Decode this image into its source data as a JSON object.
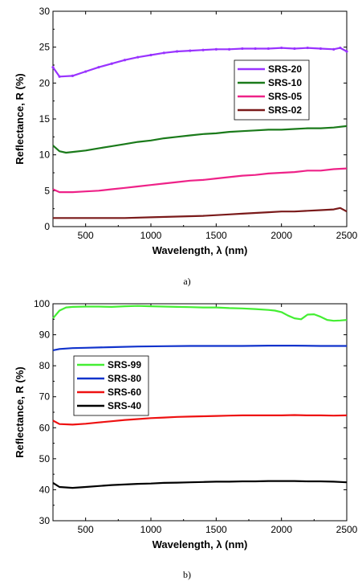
{
  "chart_data": [
    {
      "type": "line",
      "caption": "a)",
      "xlabel": "Wavelength, λ (nm)",
      "ylabel": "Reflectance, R (%)",
      "xlim": [
        250,
        2500
      ],
      "ylim": [
        0,
        30
      ],
      "xticks": [
        500,
        1000,
        1500,
        2000,
        2500
      ],
      "yticks": [
        0,
        5,
        10,
        15,
        20,
        25,
        30
      ],
      "legend_position": "right",
      "series": [
        {
          "name": "SRS-20",
          "color": "#9933ff",
          "marker": "dot",
          "x": [
            250,
            300,
            400,
            500,
            600,
            700,
            800,
            900,
            1000,
            1100,
            1200,
            1300,
            1400,
            1500,
            1600,
            1700,
            1800,
            1900,
            2000,
            2100,
            2200,
            2300,
            2400,
            2450,
            2500
          ],
          "y": [
            22.2,
            20.9,
            21.0,
            21.6,
            22.2,
            22.7,
            23.2,
            23.6,
            23.9,
            24.2,
            24.4,
            24.5,
            24.6,
            24.7,
            24.7,
            24.8,
            24.8,
            24.8,
            24.9,
            24.8,
            24.9,
            24.8,
            24.7,
            24.9,
            24.4
          ]
        },
        {
          "name": "SRS-10",
          "color": "#1a7a1a",
          "x": [
            250,
            300,
            350,
            400,
            500,
            600,
            700,
            800,
            900,
            1000,
            1100,
            1200,
            1300,
            1400,
            1500,
            1600,
            1700,
            1800,
            1900,
            2000,
            2100,
            2200,
            2300,
            2400,
            2500
          ],
          "y": [
            11.3,
            10.5,
            10.3,
            10.4,
            10.6,
            10.9,
            11.2,
            11.5,
            11.8,
            12.0,
            12.3,
            12.5,
            12.7,
            12.9,
            13.0,
            13.2,
            13.3,
            13.4,
            13.5,
            13.5,
            13.6,
            13.7,
            13.7,
            13.8,
            14.0
          ]
        },
        {
          "name": "SRS-05",
          "color": "#ee2288",
          "x": [
            250,
            300,
            400,
            500,
            600,
            700,
            800,
            900,
            1000,
            1100,
            1200,
            1300,
            1400,
            1500,
            1600,
            1700,
            1800,
            1900,
            2000,
            2100,
            2200,
            2300,
            2400,
            2500
          ],
          "y": [
            5.2,
            4.8,
            4.8,
            4.9,
            5.0,
            5.2,
            5.4,
            5.6,
            5.8,
            6.0,
            6.2,
            6.4,
            6.5,
            6.7,
            6.9,
            7.1,
            7.2,
            7.4,
            7.5,
            7.6,
            7.8,
            7.8,
            8.0,
            8.1
          ]
        },
        {
          "name": "SRS-02",
          "color": "#7a1a1a",
          "x": [
            250,
            400,
            600,
            800,
            1000,
            1200,
            1400,
            1600,
            1700,
            1800,
            1900,
            2000,
            2100,
            2200,
            2300,
            2400,
            2450,
            2500
          ],
          "y": [
            1.2,
            1.2,
            1.2,
            1.2,
            1.3,
            1.4,
            1.5,
            1.7,
            1.8,
            1.9,
            2.0,
            2.1,
            2.1,
            2.2,
            2.3,
            2.4,
            2.6,
            2.1
          ]
        }
      ]
    },
    {
      "type": "line",
      "caption": "b)",
      "xlabel": "Wavelength, λ (nm)",
      "ylabel": "Reflectance, R (%)",
      "xlim": [
        250,
        2500
      ],
      "ylim": [
        30,
        100
      ],
      "xticks": [
        500,
        1000,
        1500,
        2000,
        2500
      ],
      "yticks": [
        30,
        40,
        50,
        60,
        70,
        80,
        90,
        100
      ],
      "legend_position": "left",
      "series": [
        {
          "name": "SRS-99",
          "color": "#44ee33",
          "x": [
            250,
            300,
            350,
            400,
            500,
            600,
            700,
            800,
            900,
            1000,
            1100,
            1200,
            1300,
            1400,
            1500,
            1600,
            1700,
            1800,
            1900,
            1950,
            2000,
            2050,
            2100,
            2150,
            2200,
            2250,
            2300,
            2350,
            2400,
            2450,
            2500
          ],
          "y": [
            95.3,
            97.8,
            98.8,
            99.0,
            99.1,
            99.1,
            99.0,
            99.2,
            99.3,
            99.2,
            99.1,
            99.0,
            98.9,
            98.8,
            98.8,
            98.6,
            98.5,
            98.3,
            98.0,
            97.8,
            97.3,
            96.2,
            95.3,
            95.0,
            96.5,
            96.6,
            95.8,
            94.8,
            94.5,
            94.6,
            94.8
          ]
        },
        {
          "name": "SRS-80",
          "color": "#1133cc",
          "x": [
            250,
            300,
            400,
            500,
            700,
            900,
            1100,
            1300,
            1500,
            1700,
            1900,
            2100,
            2300,
            2500
          ],
          "y": [
            85.0,
            85.4,
            85.7,
            85.8,
            86.0,
            86.2,
            86.3,
            86.4,
            86.4,
            86.4,
            86.5,
            86.5,
            86.4,
            86.4
          ]
        },
        {
          "name": "SRS-60",
          "color": "#ee1111",
          "x": [
            250,
            300,
            400,
            500,
            600,
            700,
            800,
            900,
            1000,
            1100,
            1200,
            1300,
            1400,
            1500,
            1600,
            1700,
            1800,
            1900,
            2000,
            2100,
            2200,
            2300,
            2400,
            2500
          ],
          "y": [
            62.3,
            61.2,
            61.0,
            61.3,
            61.7,
            62.1,
            62.5,
            62.8,
            63.1,
            63.3,
            63.5,
            63.6,
            63.7,
            63.8,
            63.9,
            64.0,
            64.0,
            64.0,
            64.0,
            64.1,
            64.0,
            64.0,
            63.9,
            64.0
          ]
        },
        {
          "name": "SRS-40",
          "color": "#000000",
          "x": [
            250,
            300,
            400,
            500,
            600,
            700,
            800,
            900,
            1000,
            1100,
            1200,
            1300,
            1400,
            1500,
            1600,
            1700,
            1800,
            1900,
            2000,
            2100,
            2200,
            2300,
            2400,
            2500
          ],
          "y": [
            42.2,
            40.9,
            40.6,
            40.9,
            41.2,
            41.5,
            41.7,
            41.9,
            42.0,
            42.2,
            42.3,
            42.4,
            42.5,
            42.6,
            42.6,
            42.7,
            42.7,
            42.8,
            42.8,
            42.8,
            42.7,
            42.7,
            42.6,
            42.4
          ]
        }
      ]
    }
  ]
}
